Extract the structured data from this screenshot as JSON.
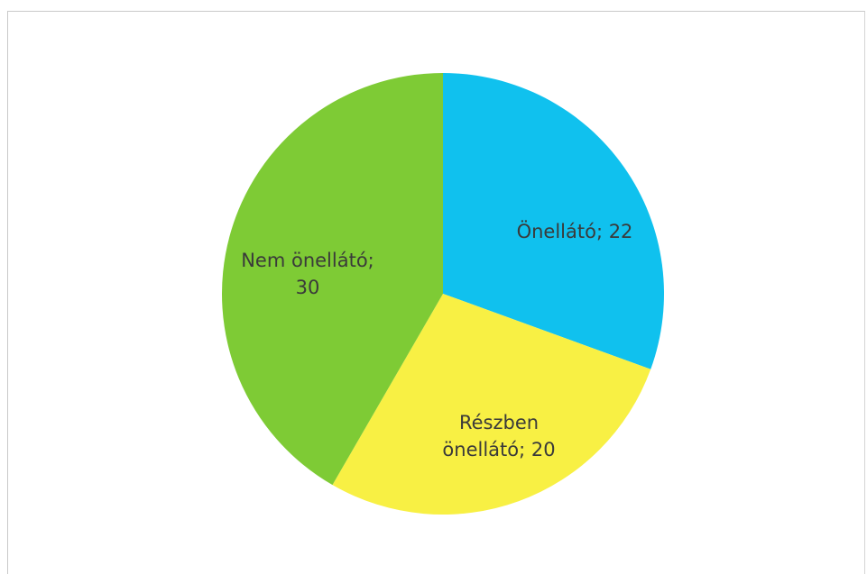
{
  "chart_data": {
    "type": "pie",
    "slices": [
      {
        "label_lines": [
          "Önellátó; 22"
        ],
        "name": "Önellátó",
        "value": 22,
        "color": "#10c1ee"
      },
      {
        "label_lines": [
          "Részben",
          "önellátó; 20"
        ],
        "name": "Részben önellátó",
        "value": 20,
        "color": "#f8f044"
      },
      {
        "label_lines": [
          "Nem önellátó;",
          "30"
        ],
        "name": "Nem önellátó",
        "value": 30,
        "color": "#7ecb35"
      }
    ],
    "start_angle_deg": 0,
    "direction": "clockwise",
    "legend": "none",
    "grid": false
  }
}
